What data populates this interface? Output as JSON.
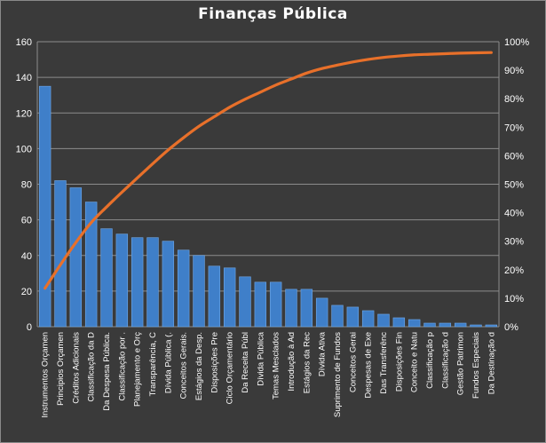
{
  "chart_data": {
    "type": "bar",
    "title": "Finanças  Pública",
    "categories": [
      "Instrumentos Orçamen",
      "Principios Orçamen",
      "Créditos Adicionais",
      "Classificação da D",
      "Da Despesa Pública.",
      "Classificação por .",
      "Planejamento e Orç",
      "Transparência, C",
      "Dívida Pública (.",
      "Conceitos Gerais.",
      "Estágios da Desp.",
      "Disposições Pre",
      "Ciclo Orçamentário",
      "Da Receita Públ",
      "Dívida Pública",
      "Temas Mesclados",
      "Introdução à Ad",
      "Estágios da Rec",
      "Dívida Ativa",
      "Suprimento de Fundos",
      "Conceitos Gerai",
      "Despesas de Exe",
      "Das Transferênc",
      "Disposições Fin",
      "Conceito e Natu",
      "Classificação p",
      "Classificação d",
      "Gestão Patrimon",
      "Fundos Especiais",
      "Da Destinação d"
    ],
    "series": [
      {
        "type": "bar",
        "color": "#3f7fc9",
        "values": [
          135,
          82,
          78,
          70,
          55,
          52,
          50,
          50,
          48,
          43,
          40,
          34,
          33,
          28,
          25,
          25,
          21,
          21,
          16,
          12,
          11,
          9,
          7,
          5,
          4,
          2,
          2,
          2,
          1,
          1
        ]
      },
      {
        "type": "line",
        "color": "#e8702a",
        "axis": "right",
        "values": [
          13.5,
          21.7,
          29.5,
          36.5,
          42.0,
          47.2,
          52.2,
          57.2,
          62.0,
          66.3,
          70.3,
          73.7,
          77.0,
          79.8,
          82.3,
          84.8,
          86.9,
          89.0,
          90.6,
          91.8,
          92.9,
          93.8,
          94.5,
          95.0,
          95.4,
          95.6,
          95.8,
          96.0,
          96.1,
          96.2
        ]
      }
    ],
    "ylim": [
      0,
      160
    ],
    "yticks": [
      "0",
      "20",
      "40",
      "60",
      "80",
      "100",
      "120",
      "140",
      "160"
    ],
    "y2lim": [
      0,
      100
    ],
    "y2ticks": [
      "0%",
      "10%",
      "20%",
      "30%",
      "40%",
      "50%",
      "60%",
      "70%",
      "80%",
      "90%",
      "100%"
    ],
    "grid": true,
    "legend": "none",
    "colors": {
      "background": "#3a3a3a",
      "gridline": "#8c8c8c",
      "text": "#ffffff"
    }
  }
}
